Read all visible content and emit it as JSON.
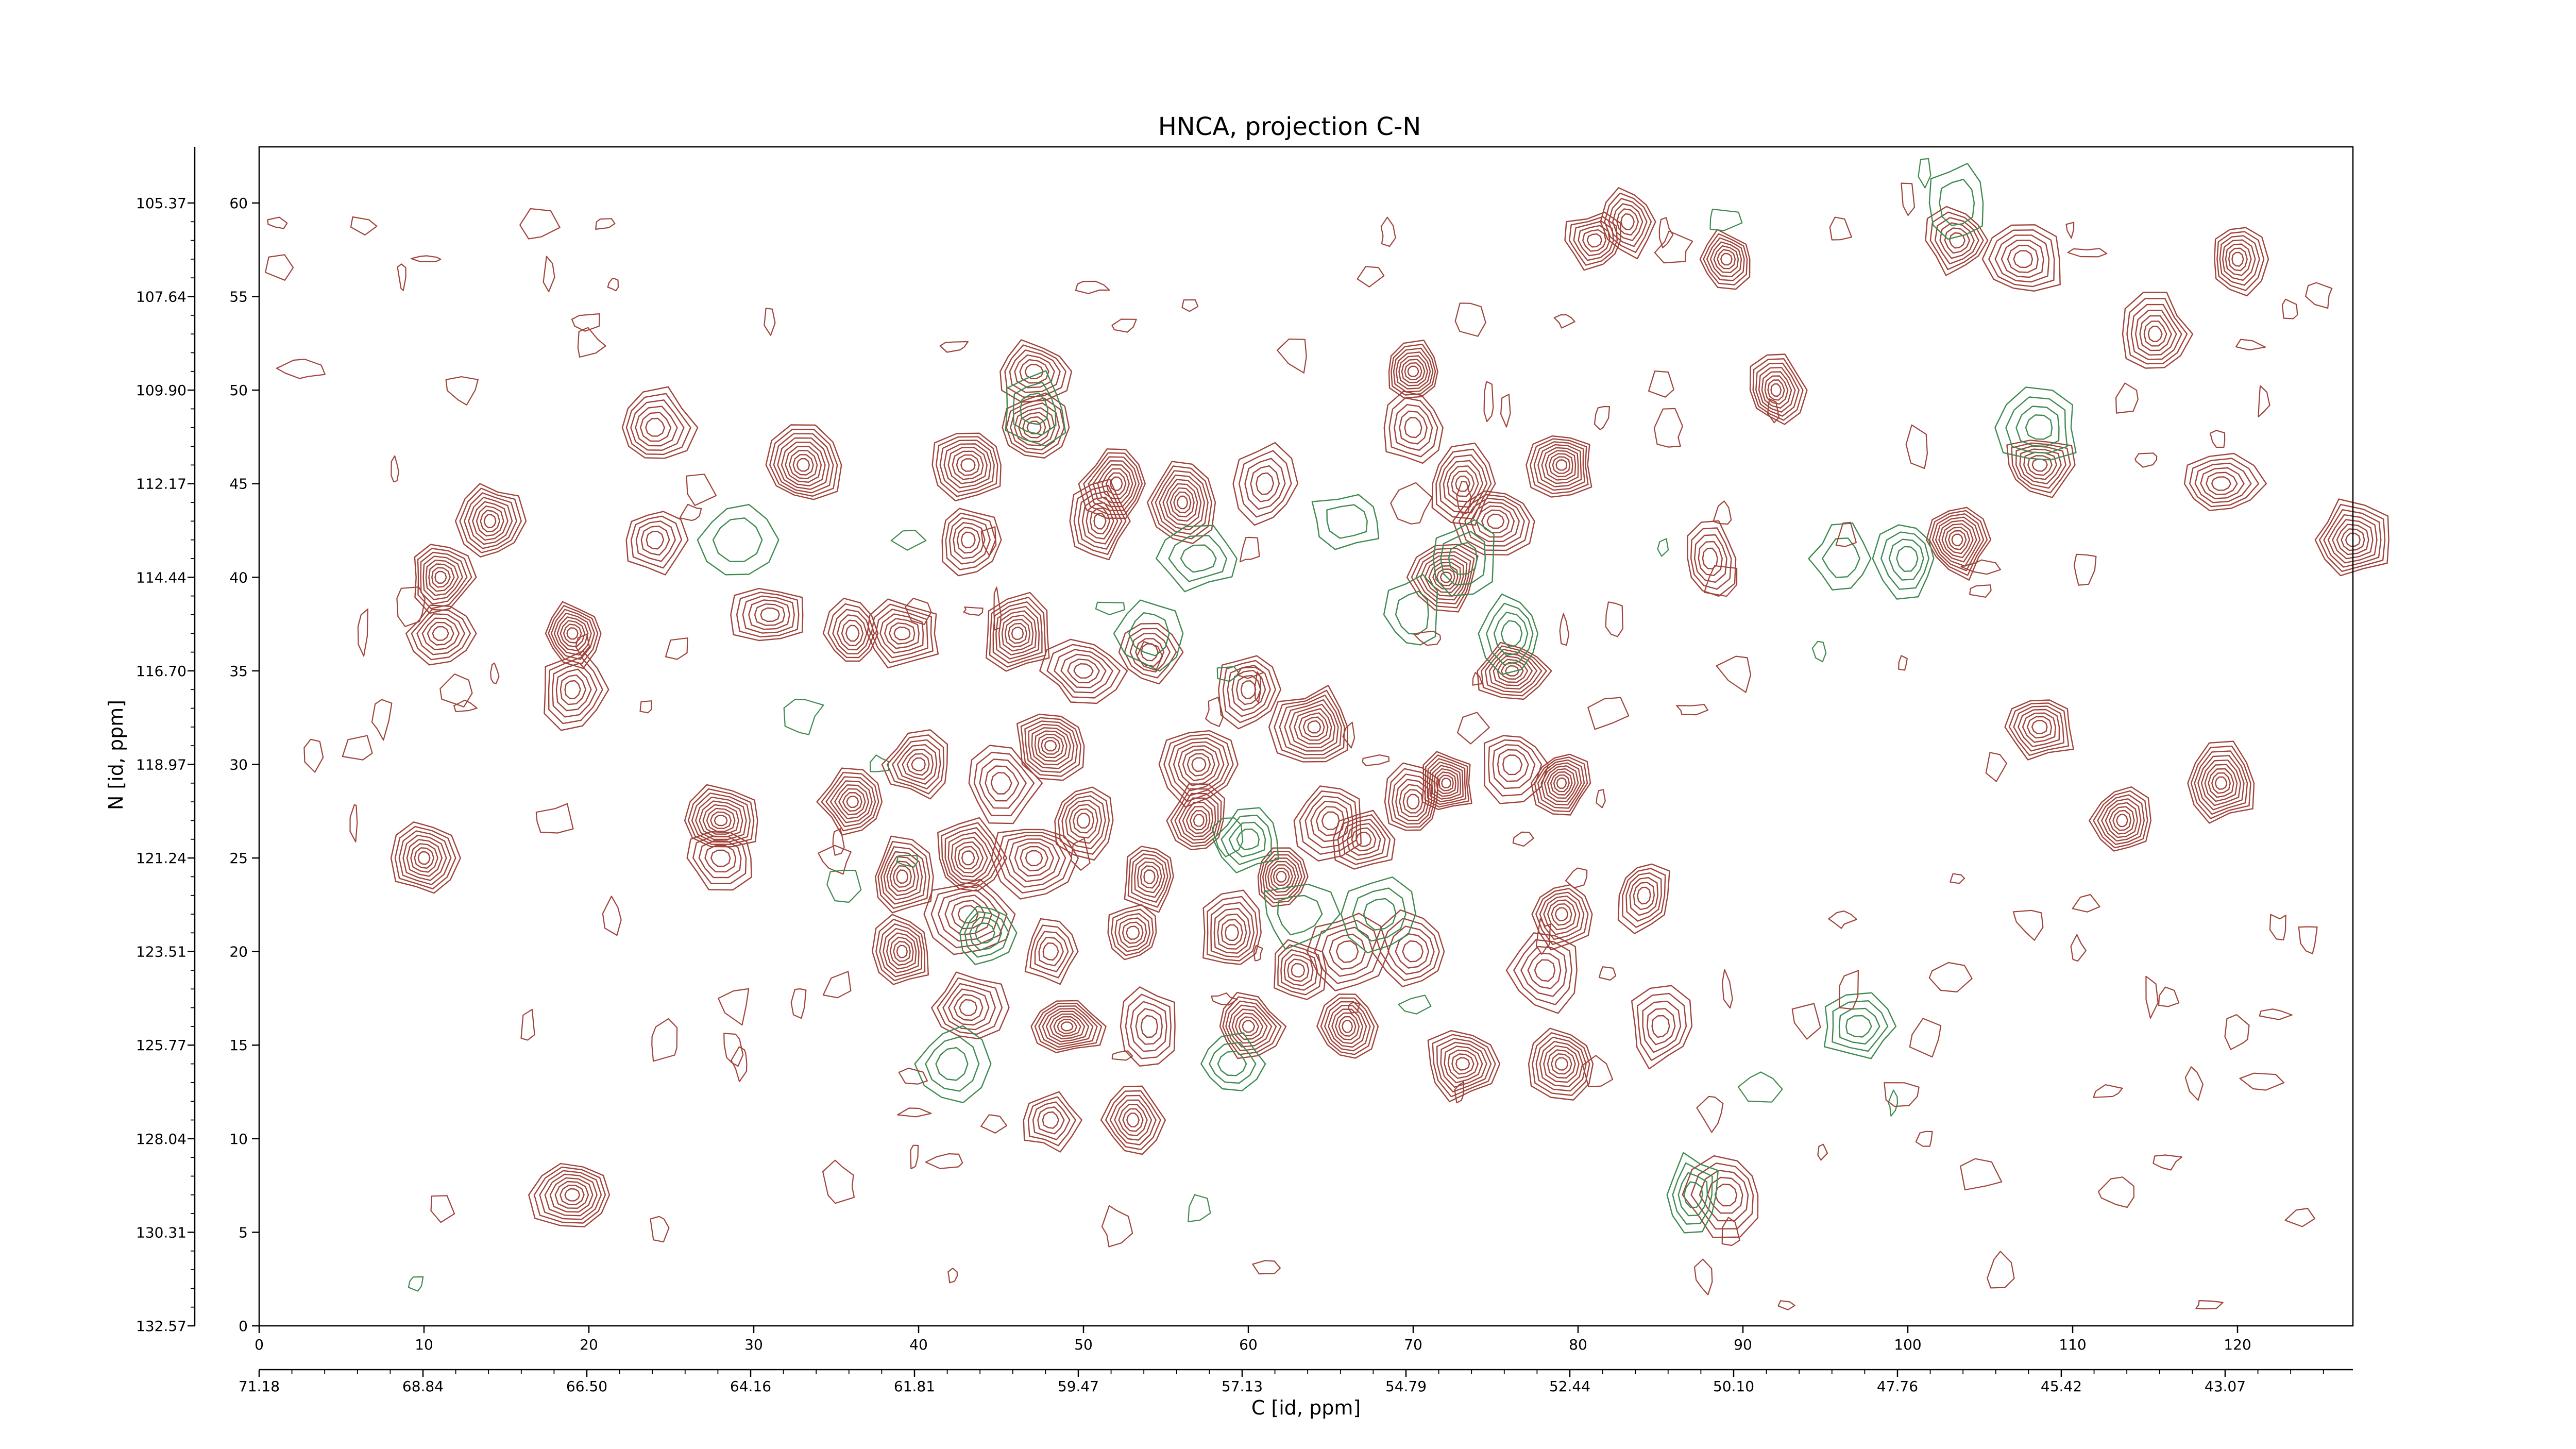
{
  "chart_data": {
    "type": "contour",
    "title": "HNCA, projection C-N",
    "xlabel": "C [id, ppm]",
    "ylabel": "N [id, ppm]",
    "x_index_range": [
      0,
      127
    ],
    "y_index_range": [
      0,
      63
    ],
    "x_index_ticks": [
      0,
      10,
      20,
      30,
      40,
      50,
      60,
      70,
      80,
      90,
      100,
      110,
      120
    ],
    "y_index_ticks": [
      0,
      5,
      10,
      15,
      20,
      25,
      30,
      35,
      40,
      45,
      50,
      55,
      60
    ],
    "x_ppm_ticks": [
      "71.18",
      "68.84",
      "66.50",
      "64.16",
      "61.81",
      "59.47",
      "57.13",
      "54.79",
      "52.44",
      "50.10",
      "47.76",
      "45.42",
      "43.07"
    ],
    "y_ppm_ticks": [
      "132.57",
      "130.31",
      "128.04",
      "125.77",
      "123.51",
      "121.24",
      "118.97",
      "116.70",
      "114.44",
      "112.17",
      "109.90",
      "107.64",
      "105.37"
    ],
    "grid": false,
    "colors": {
      "positive": "#a0433a",
      "negative": "#3e8a4f"
    },
    "positive_peaks": [
      [
        10,
        25
      ],
      [
        28,
        25
      ],
      [
        28,
        27
      ],
      [
        19,
        34
      ],
      [
        19,
        37
      ],
      [
        11,
        37
      ],
      [
        11,
        40
      ],
      [
        14,
        43
      ],
      [
        24,
        42
      ],
      [
        33,
        46
      ],
      [
        43,
        46
      ],
      [
        43,
        42
      ],
      [
        36,
        37
      ],
      [
        39,
        37
      ],
      [
        47,
        51
      ],
      [
        47,
        48
      ],
      [
        52,
        45
      ],
      [
        56,
        44
      ],
      [
        51,
        43
      ],
      [
        61,
        45
      ],
      [
        70,
        51
      ],
      [
        70,
        48
      ],
      [
        73,
        45
      ],
      [
        75,
        43
      ],
      [
        72,
        40
      ],
      [
        76,
        35
      ],
      [
        79,
        46
      ],
      [
        88,
        41
      ],
      [
        81,
        58
      ],
      [
        89,
        57
      ],
      [
        103,
        58
      ],
      [
        107,
        57
      ],
      [
        120,
        57
      ],
      [
        115,
        53
      ],
      [
        108,
        46
      ],
      [
        119,
        45
      ],
      [
        127,
        42
      ],
      [
        103,
        42
      ],
      [
        108,
        32
      ],
      [
        119,
        29
      ],
      [
        113,
        27
      ],
      [
        46,
        37
      ],
      [
        50,
        35
      ],
      [
        54,
        36
      ],
      [
        60,
        34
      ],
      [
        64,
        32
      ],
      [
        57,
        30
      ],
      [
        48,
        31
      ],
      [
        45,
        29
      ],
      [
        40,
        30
      ],
      [
        36,
        28
      ],
      [
        43,
        25
      ],
      [
        39,
        24
      ],
      [
        47,
        25
      ],
      [
        54,
        24
      ],
      [
        62,
        24
      ],
      [
        67,
        26
      ],
      [
        72,
        29
      ],
      [
        79,
        29
      ],
      [
        76,
        30
      ],
      [
        70,
        28
      ],
      [
        84,
        23
      ],
      [
        79,
        22
      ],
      [
        78,
        19
      ],
      [
        70,
        20
      ],
      [
        66,
        20
      ],
      [
        59,
        21
      ],
      [
        53,
        21
      ],
      [
        48,
        20
      ],
      [
        43,
        22
      ],
      [
        39,
        20
      ],
      [
        43,
        17
      ],
      [
        49,
        16
      ],
      [
        54,
        16
      ],
      [
        60,
        16
      ],
      [
        66,
        16
      ],
      [
        73,
        14
      ],
      [
        79,
        14
      ],
      [
        85,
        16
      ],
      [
        53,
        11
      ],
      [
        48,
        11
      ],
      [
        63,
        19
      ],
      [
        57,
        27
      ],
      [
        50,
        27
      ],
      [
        65,
        27
      ],
      [
        19,
        7
      ],
      [
        89,
        7
      ],
      [
        31,
        38
      ],
      [
        24,
        48
      ],
      [
        92,
        50
      ],
      [
        83,
        59
      ]
    ],
    "negative_peaks": [
      [
        47,
        49
      ],
      [
        57,
        41
      ],
      [
        73,
        41
      ],
      [
        76,
        37
      ],
      [
        70,
        38
      ],
      [
        66,
        43
      ],
      [
        29,
        42
      ],
      [
        96,
        41
      ],
      [
        100,
        41
      ],
      [
        108,
        48
      ],
      [
        103,
        60
      ],
      [
        59,
        14
      ],
      [
        63,
        22
      ],
      [
        87,
        7
      ],
      [
        97,
        16
      ],
      [
        42,
        14
      ],
      [
        68,
        22
      ],
      [
        60,
        26
      ],
      [
        44,
        21
      ],
      [
        54,
        37
      ]
    ]
  }
}
